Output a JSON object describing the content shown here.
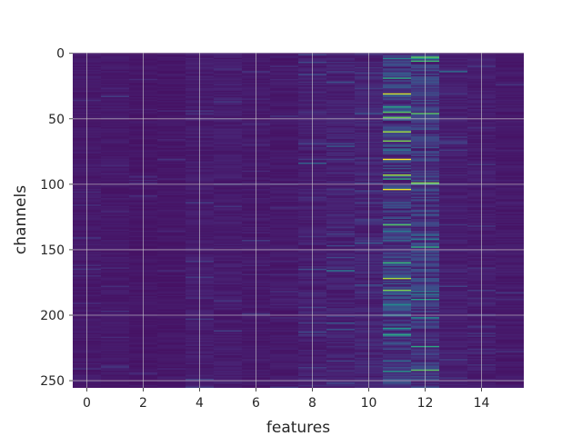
{
  "chart_data": {
    "type": "heatmap",
    "title": "",
    "xlabel": "features",
    "ylabel": "channels",
    "columns": 16,
    "rows": 256,
    "xlim": [
      -0.5,
      15.5
    ],
    "ylim": [
      255.5,
      -0.5
    ],
    "y_inverted": true,
    "xticks": [
      0,
      2,
      4,
      6,
      8,
      10,
      12,
      14
    ],
    "yticks": [
      0,
      50,
      100,
      150,
      200,
      250
    ],
    "grid": true,
    "colormap": "viridis",
    "value_range": [
      0,
      1
    ],
    "background_level": 0.08,
    "column_mean": [
      0.09,
      0.09,
      0.08,
      0.08,
      0.1,
      0.1,
      0.09,
      0.09,
      0.11,
      0.12,
      0.13,
      0.22,
      0.2,
      0.11,
      0.1,
      0.09
    ],
    "column_variability": [
      0.05,
      0.05,
      0.04,
      0.04,
      0.06,
      0.06,
      0.05,
      0.05,
      0.08,
      0.09,
      0.1,
      0.3,
      0.25,
      0.07,
      0.06,
      0.05
    ],
    "bright_cells": [
      {
        "feature": 11,
        "channel": 4,
        "value": 0.55
      },
      {
        "feature": 11,
        "channel": 19,
        "value": 0.7
      },
      {
        "feature": 11,
        "channel": 31,
        "value": 0.95
      },
      {
        "feature": 11,
        "channel": 45,
        "value": 0.8
      },
      {
        "feature": 11,
        "channel": 60,
        "value": 0.9
      },
      {
        "feature": 11,
        "channel": 81,
        "value": 1.0
      },
      {
        "feature": 11,
        "channel": 96,
        "value": 0.7
      },
      {
        "feature": 11,
        "channel": 160,
        "value": 0.75
      },
      {
        "feature": 11,
        "channel": 192,
        "value": 0.6
      },
      {
        "feature": 11,
        "channel": 215,
        "value": 0.7
      },
      {
        "feature": 11,
        "channel": 243,
        "value": 0.65
      },
      {
        "feature": 12,
        "channel": 46,
        "value": 0.8
      },
      {
        "feature": 12,
        "channel": 99,
        "value": 0.85
      },
      {
        "feature": 12,
        "channel": 148,
        "value": 0.7
      },
      {
        "feature": 12,
        "channel": 202,
        "value": 0.6
      },
      {
        "feature": 12,
        "channel": 242,
        "value": 0.8
      },
      {
        "feature": 13,
        "channel": 14,
        "value": 0.45
      },
      {
        "feature": 9,
        "channel": 166,
        "value": 0.5
      },
      {
        "feature": 8,
        "channel": 84,
        "value": 0.4
      }
    ]
  }
}
